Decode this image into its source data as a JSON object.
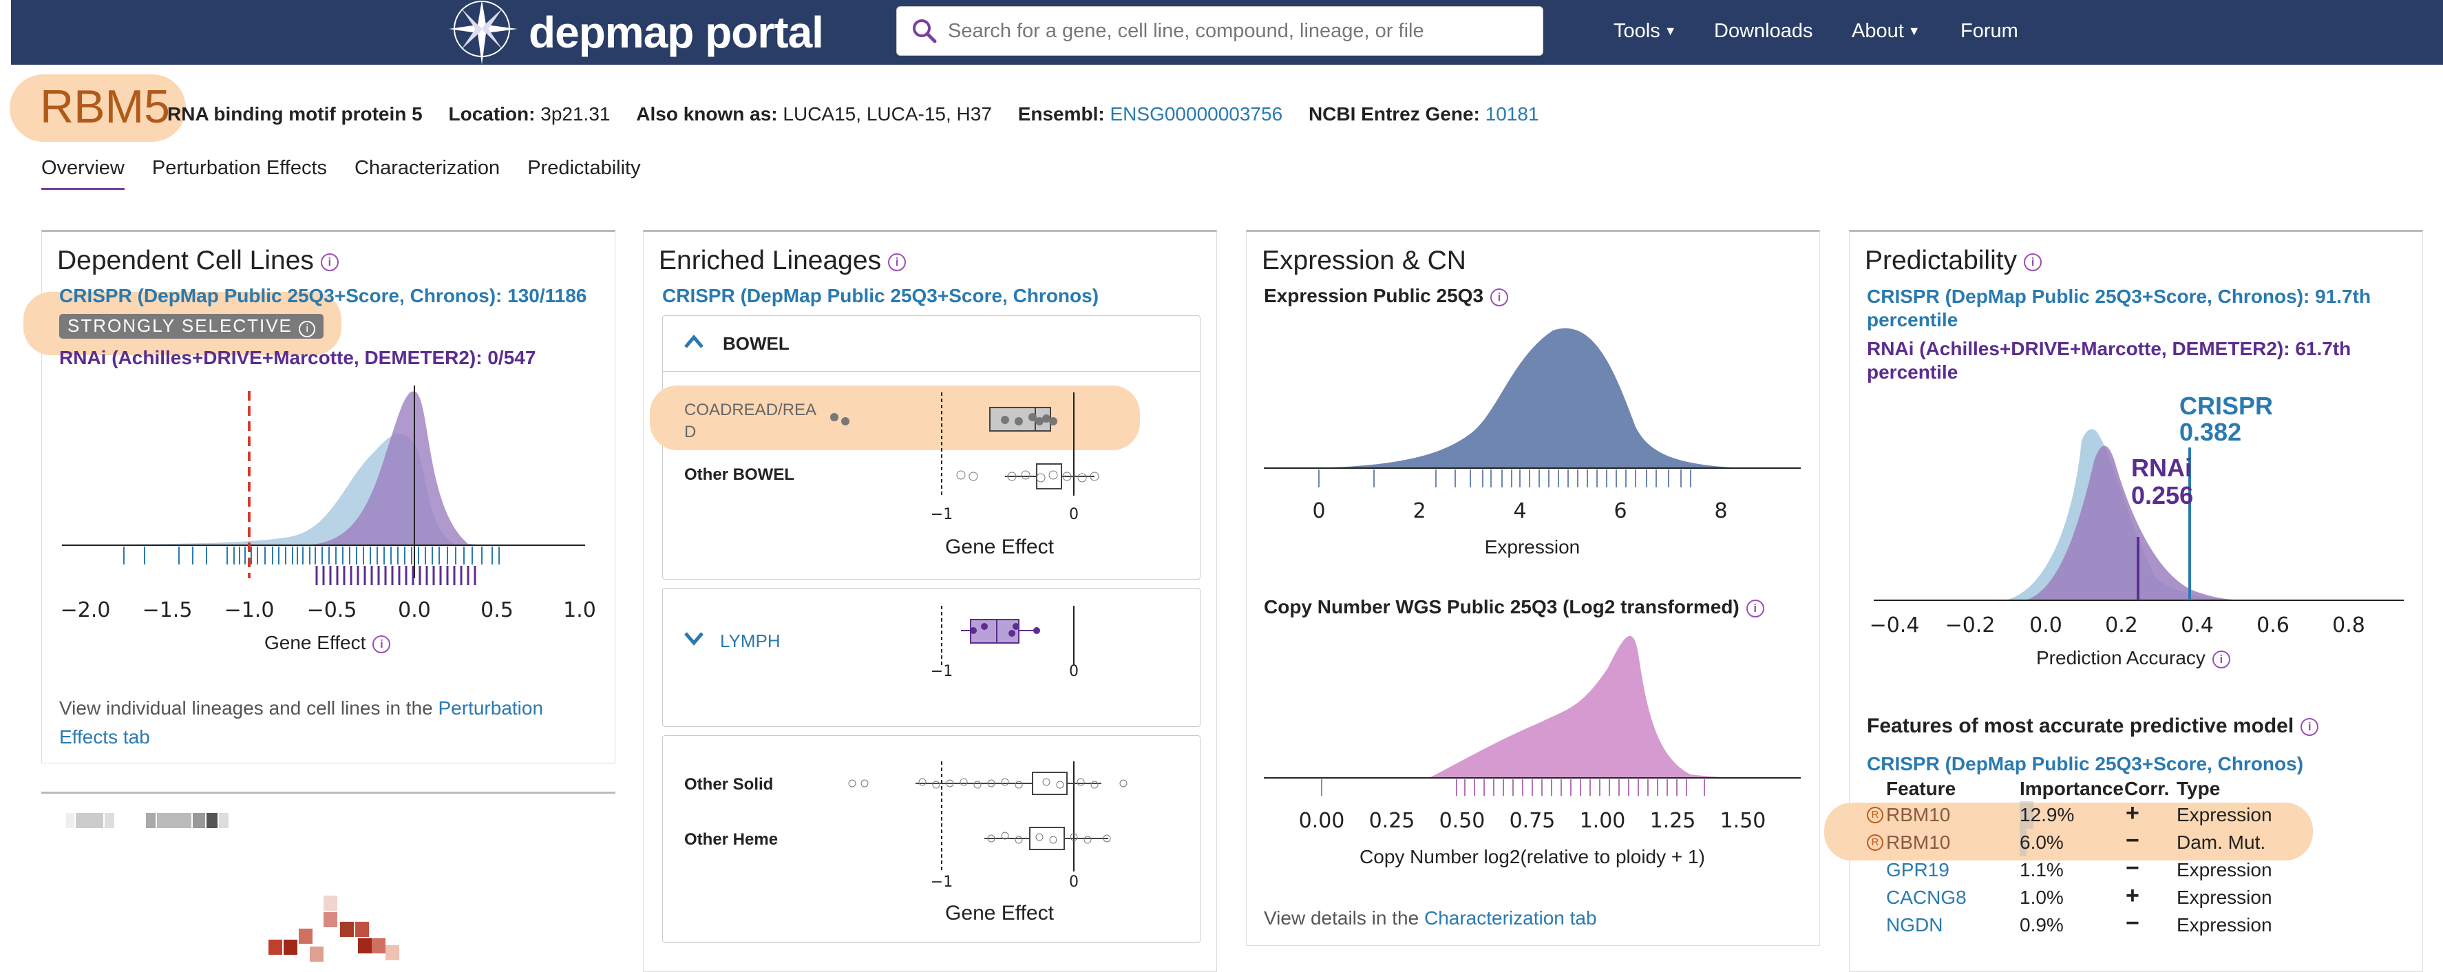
{
  "nav": {
    "brand": "depmap portal",
    "search_placeholder": "Search for a gene, cell line, compound, lineage, or file",
    "items": [
      "Tools",
      "Downloads",
      "About",
      "Forum"
    ]
  },
  "gene": {
    "symbol": "RBM5",
    "full_name": "RNA binding motif protein 5",
    "location_label": "Location:",
    "location": "3p21.31",
    "aliases_label": "Also known as:",
    "aliases": "LUCA15, LUCA-15, H37",
    "ensembl_label": "Ensembl:",
    "ensembl": "ENSG00000003756",
    "entrez_label": "NCBI Entrez Gene:",
    "entrez": "10181"
  },
  "tabs": [
    "Overview",
    "Perturbation Effects",
    "Characterization",
    "Predictability"
  ],
  "dependent": {
    "title": "Dependent Cell Lines",
    "crispr_line": "CRISPR (DepMap Public 25Q3+Score, Chronos): 130/1186",
    "badge": "STRONGLY SELECTIVE",
    "rnai_line": "RNAi (Achilles+DRIVE+Marcotte, DEMETER2): 0/547",
    "x_ticks": [
      "−2.0",
      "−1.5",
      "−1.0",
      "−0.5",
      "0.0",
      "0.5",
      "1.0"
    ],
    "x_label": "Gene Effect",
    "footer_text": "View individual lineages and cell lines in the ",
    "footer_link": "Perturbation Effects tab"
  },
  "enriched": {
    "title": "Enriched Lineages",
    "subtitle": "CRISPR (DepMap Public 25Q3+Score, Chronos)",
    "bowel_header": "BOWEL",
    "coad_label_1": "COADREAD/REA",
    "coad_label_2": "D",
    "other_bowel": "Other BOWEL",
    "lymph_header": "LYMPH",
    "other_solid": "Other Solid",
    "other_heme": "Other Heme",
    "tick_neg1": "−1",
    "tick_0": "0",
    "x_label": "Gene Effect"
  },
  "expression": {
    "title": "Expression & CN",
    "expr_label": "Expression Public 25Q3",
    "expr_ticks": [
      "0",
      "2",
      "4",
      "6",
      "8"
    ],
    "expr_xlabel": "Expression",
    "cn_label": "Copy Number WGS Public 25Q3 (Log2 transformed)",
    "cn_ticks": [
      "0.00",
      "0.25",
      "0.50",
      "0.75",
      "1.00",
      "1.25",
      "1.50"
    ],
    "cn_xlabel": "Copy Number log2(relative to ploidy + 1)",
    "footer_text": "View details in the ",
    "footer_link": "Characterization tab"
  },
  "predictability": {
    "title": "Predictability",
    "crispr_line": "CRISPR (DepMap Public 25Q3+Score, Chronos): 91.7th percentile",
    "rnai_line": "RNAi (Achilles+DRIVE+Marcotte, DEMETER2): 61.7th percentile",
    "crispr_tag": "CRISPR",
    "crispr_value": "0.382",
    "rnai_tag": "RNAi",
    "rnai_value": "0.256",
    "x_ticks": [
      "−0.4",
      "−0.2",
      "0.0",
      "0.2",
      "0.4",
      "0.6",
      "0.8"
    ],
    "x_label": "Prediction Accuracy",
    "features_title": "Features of most accurate predictive model",
    "features_subtitle": "CRISPR (DepMap Public 25Q3+Score, Chronos)",
    "columns": [
      "Feature",
      "Importance",
      "Corr.",
      "Type"
    ],
    "rows": [
      {
        "feature": "RBM10",
        "importance": "12.9%",
        "corr": "+",
        "type": "Expression"
      },
      {
        "feature": "RBM10",
        "importance": "6.0%",
        "corr": "−",
        "type": "Dam. Mut."
      },
      {
        "feature": "GPR19",
        "importance": "1.1%",
        "corr": "−",
        "type": "Expression"
      },
      {
        "feature": "CACNG8",
        "importance": "1.0%",
        "corr": "+",
        "type": "Expression"
      },
      {
        "feature": "NGDN",
        "importance": "0.9%",
        "corr": "−",
        "type": "Expression"
      }
    ]
  },
  "colors": {
    "navbar": "#2a3d66",
    "crispr_blue": "#2a7ab0",
    "rnai_purple": "#5b2d8e",
    "highlight": "#fbd7b3",
    "expression_fill": "#6f86b0",
    "cn_fill": "#d59bd0"
  }
}
